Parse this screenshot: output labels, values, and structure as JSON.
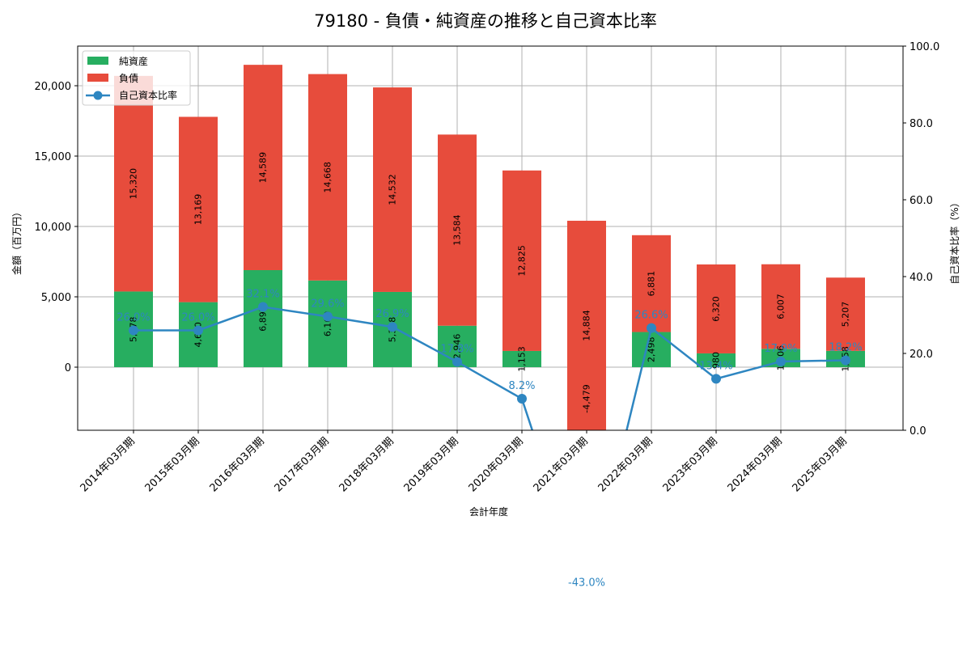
{
  "chart_data": {
    "type": "bar",
    "subtype": "stacked bar + line (dual axis)",
    "title": "79180 - 負債・純資産の推移と自己資本比率",
    "xlabel": "会計年度",
    "ylabel": "金額（百万円）",
    "y2label": "自己資本比率（%）",
    "categories": [
      "2014年03月期",
      "2015年03月期",
      "2016年03月期",
      "2017年03月期",
      "2018年03月期",
      "2019年03月期",
      "2020年03月期",
      "2021年03月期",
      "2022年03月期",
      "2023年03月期",
      "2024年03月期",
      "2025年03月期"
    ],
    "series": [
      {
        "name": "純資産",
        "type": "bar",
        "color": "#27ae60",
        "values": [
          5378,
          4620,
          6897,
          6160,
          5348,
          2946,
          1153,
          -4479,
          2498,
          980,
          1306,
          1158
        ],
        "labels": [
          "5,378",
          "4,620",
          "6,897",
          "6,160",
          "5,348",
          "2,946",
          "1,153",
          "-4,479",
          "2,498",
          "980",
          "1,306",
          "1,158"
        ]
      },
      {
        "name": "負債",
        "type": "bar",
        "color": "#e74c3c",
        "values": [
          15320,
          13169,
          14589,
          14668,
          14532,
          13584,
          12825,
          14884,
          6881,
          6320,
          6007,
          5207
        ],
        "labels": [
          "15,320",
          "13,169",
          "14,589",
          "14,668",
          "14,532",
          "13,584",
          "12,825",
          "14,884",
          "6,881",
          "6,320",
          "6,007",
          "5,207"
        ]
      },
      {
        "name": "自己資本比率",
        "type": "line",
        "axis": "right",
        "color": "#2e86c1",
        "values": [
          26.0,
          26.0,
          32.1,
          29.6,
          26.9,
          17.8,
          8.2,
          -43.0,
          26.6,
          13.4,
          17.9,
          18.2
        ],
        "labels": [
          "26.0%",
          "26.0%",
          "32.1%",
          "29.6%",
          "26.9%",
          "17.8%",
          "8.2%",
          "-43.0%",
          "26.6%",
          "13.4%",
          "17.9%",
          "18.2%"
        ]
      }
    ],
    "ylim": [
      -4479,
      22800
    ],
    "y2lim": [
      0,
      100
    ],
    "yticks": [
      0,
      5000,
      10000,
      15000,
      20000
    ],
    "ytick_labels": [
      "0",
      "5,000",
      "10,000",
      "15,000",
      "20,000"
    ],
    "y2ticks": [
      0,
      20,
      40,
      60,
      80,
      100
    ],
    "y2tick_labels": [
      "0.0",
      "20.0",
      "40.0",
      "60.0",
      "80.0",
      "100.0"
    ],
    "grid": true,
    "legend": {
      "position": "upper left",
      "entries": [
        "純資産",
        "負債",
        "自己資本比率"
      ]
    }
  }
}
